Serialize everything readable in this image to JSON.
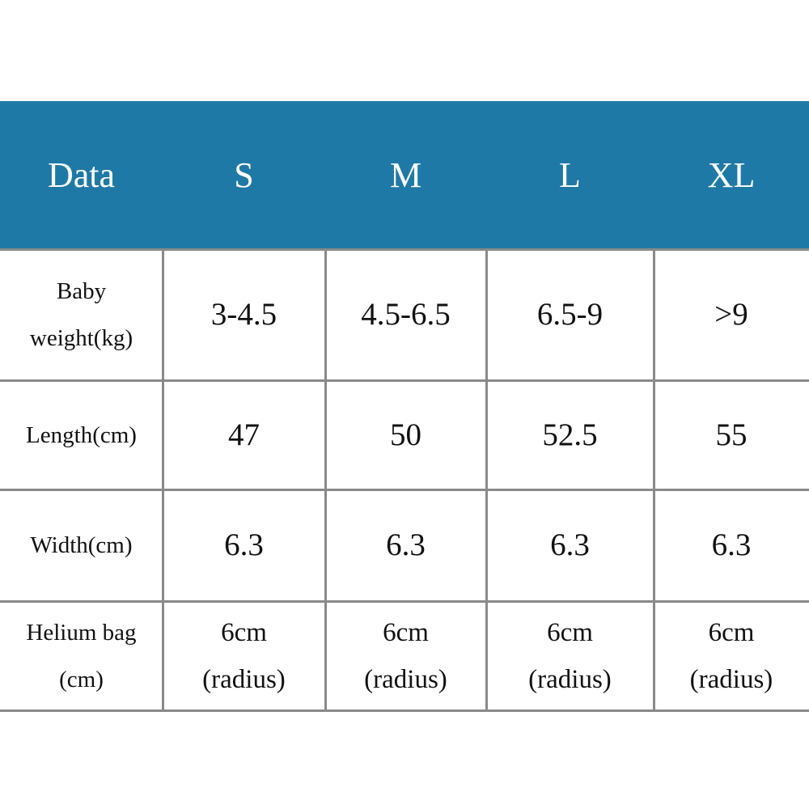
{
  "table": {
    "header": [
      "Data",
      "S",
      "M",
      "L",
      "XL"
    ],
    "rows": [
      [
        [
          "Baby",
          "weight(kg)"
        ],
        "3-4.5",
        "4.5-6.5",
        "6.5-9",
        ">9"
      ],
      [
        [
          "Length(cm)"
        ],
        "47",
        "50",
        "52.5",
        "55"
      ],
      [
        [
          "Width(cm)"
        ],
        "6.3",
        "6.3",
        "6.3",
        "6.3"
      ],
      [
        [
          "Helium bag",
          "(cm)"
        ],
        [
          "6cm",
          "(radius)"
        ],
        [
          "6cm",
          "(radius)"
        ],
        [
          "6cm",
          "(radius)"
        ],
        [
          "6cm",
          "(radius)"
        ]
      ]
    ]
  }
}
